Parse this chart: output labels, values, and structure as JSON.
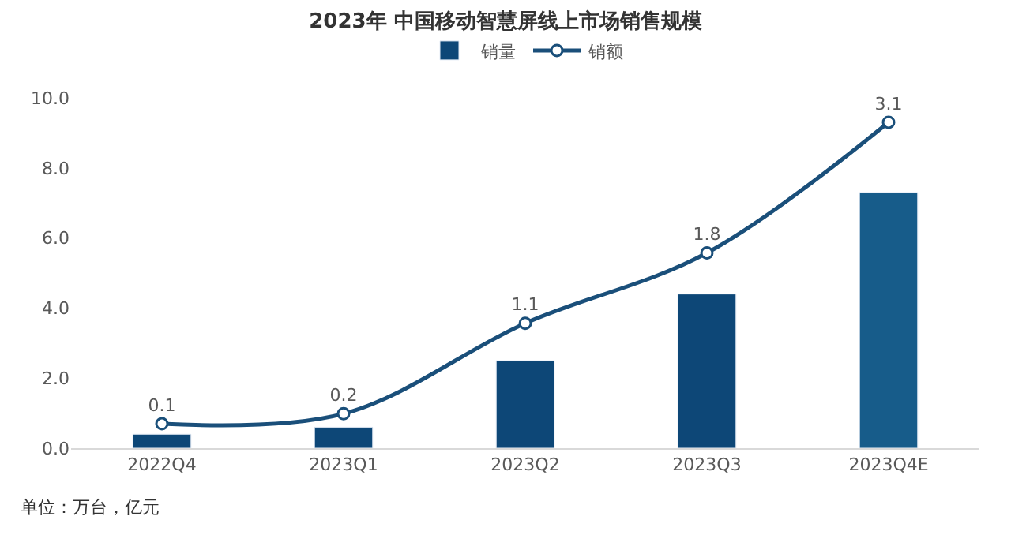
{
  "chart_data": {
    "type": "bar",
    "title": "2023年 中国移动智慧屏线上市场销售规模",
    "categories": [
      "2022Q4",
      "2023Q1",
      "2023Q2",
      "2023Q3",
      "2023Q4E"
    ],
    "series": [
      {
        "name": "销量",
        "colors": [
          "#0d4777",
          "#0d4777",
          "#0d4777",
          "#0d4777",
          "#175c8a"
        ],
        "values": [
          0.4,
          0.6,
          2.5,
          4.4,
          7.3
        ]
      },
      {
        "name": "销额",
        "type": "line",
        "axis": "y2",
        "color": "#1a4f7a",
        "marker": "circle",
        "data_labels": true,
        "values": [
          0.1,
          0.2,
          1.1,
          1.8,
          3.1
        ]
      }
    ],
    "ylim": [
      0,
      10
    ],
    "yticks": [
      {
        "value": 0,
        "label": "0.0"
      },
      {
        "value": 2,
        "label": "2.0"
      },
      {
        "value": 4,
        "label": "4.0"
      },
      {
        "value": 6,
        "label": "6.0"
      },
      {
        "value": 8,
        "label": "8.0"
      },
      {
        "value": 10,
        "label": "10.0"
      }
    ],
    "grid": false,
    "legend": "top",
    "annotations": [
      "单位：万台，亿元"
    ]
  }
}
